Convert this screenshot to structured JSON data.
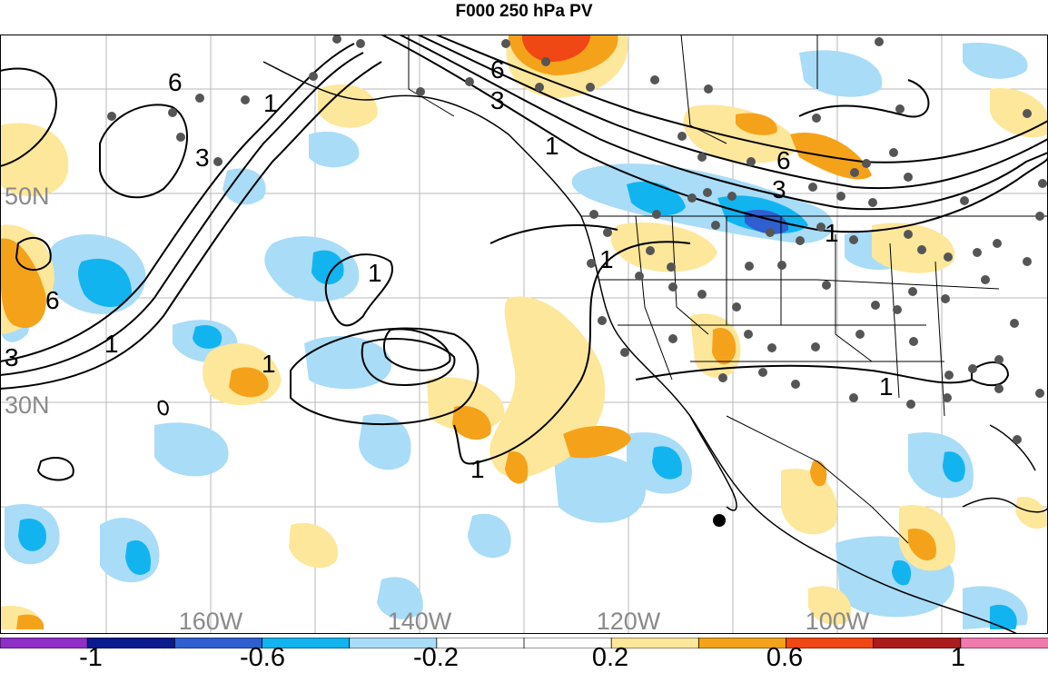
{
  "title": "F000 250 hPa PV",
  "latitude_labels": [
    "50N",
    "30N"
  ],
  "longitude_labels": [
    "160W",
    "140W",
    "120W",
    "100W"
  ],
  "contour_labels": [
    "1",
    "3",
    "6"
  ],
  "colorbar": {
    "colors": [
      "#8f2fc7",
      "#0b1a8e",
      "#2f5fd0",
      "#12b4ef",
      "#a9dcf7",
      "#ffffff",
      "#ffffff",
      "#fde79a",
      "#f5a21b",
      "#f04714",
      "#ab1c1c",
      "#f07aae"
    ],
    "tick_labels": [
      "-1",
      "-0.6",
      "-0.2",
      "0.2",
      "0.6",
      "1"
    ]
  }
}
